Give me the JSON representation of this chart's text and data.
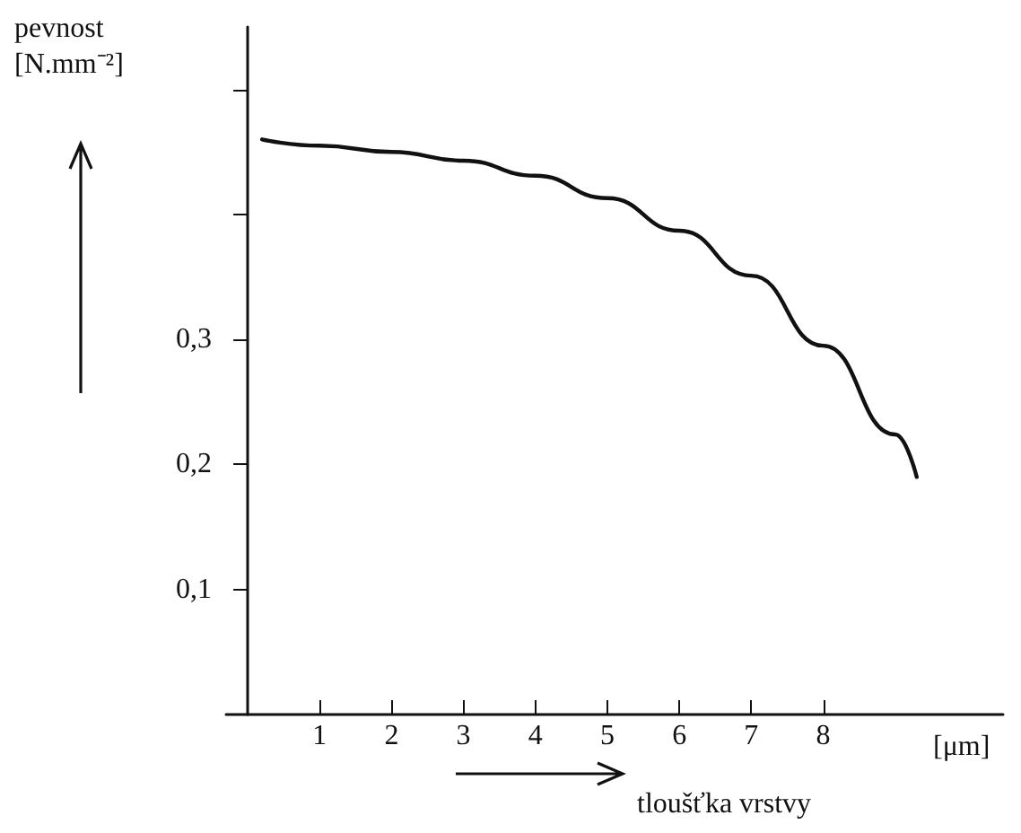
{
  "chart_data": {
    "type": "line",
    "ylabel": "pevnost\n[N.mm⁻²]",
    "xlabel": "tloušťka vrstvy",
    "annotations": [
      "[μm]"
    ],
    "x": [
      0.2,
      1,
      2,
      3,
      4,
      5,
      6,
      7,
      8,
      9,
      9.3
    ],
    "series": [
      {
        "color": "#111111",
        "values": [
          0.46,
          0.455,
          0.45,
          0.443,
          0.431,
          0.413,
          0.387,
          0.351,
          0.295,
          0.224,
          0.19
        ]
      }
    ],
    "xlim": [
      -0.3,
      10.5
    ],
    "xticks": [
      1,
      2,
      3,
      4,
      5,
      6,
      7,
      8
    ],
    "ylim": [
      0,
      0.55
    ],
    "yticks": [
      {
        "value": 0.1,
        "label": "0,1"
      },
      {
        "value": 0.2,
        "label": "0,2"
      },
      {
        "value": 0.3,
        "label": "0,3"
      },
      {
        "value": 0.4,
        "label": null
      },
      {
        "value": 0.5,
        "label": null
      }
    ],
    "grid": false,
    "marker": "none",
    "line_style": "solid"
  }
}
